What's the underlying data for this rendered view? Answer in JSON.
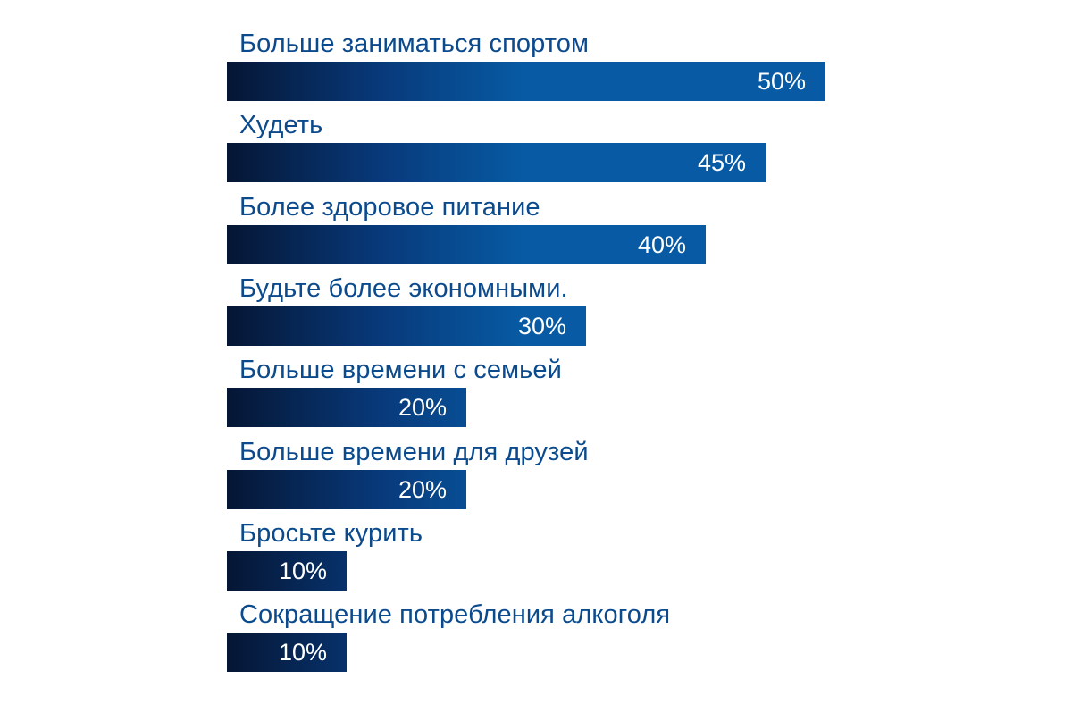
{
  "chart_data": {
    "type": "bar",
    "orientation": "horizontal",
    "categories": [
      "Больше заниматься спортом",
      "Худеть",
      "Более здоровое питание",
      "Будьте более экономными.",
      "Больше времени с семьей",
      "Больше времени для друзей",
      "Бросьте курить",
      "Сокращение потребления алкоголя"
    ],
    "values": [
      50,
      45,
      40,
      30,
      20,
      20,
      10,
      10
    ],
    "value_labels": [
      "50%",
      "45%",
      "40%",
      "30%",
      "20%",
      "20%",
      "10%",
      "10%"
    ],
    "unit": "%",
    "xlim": [
      0,
      50
    ],
    "title": "",
    "xlabel": "",
    "ylabel": "",
    "grid": false,
    "legend": "none"
  },
  "colors": {
    "label_text": "#0b4a8c",
    "value_text": "#ffffff",
    "bar_gradient_start": "#051634",
    "bar_gradient_mid": "#08397a",
    "bar_gradient_end": "#075aa3"
  }
}
